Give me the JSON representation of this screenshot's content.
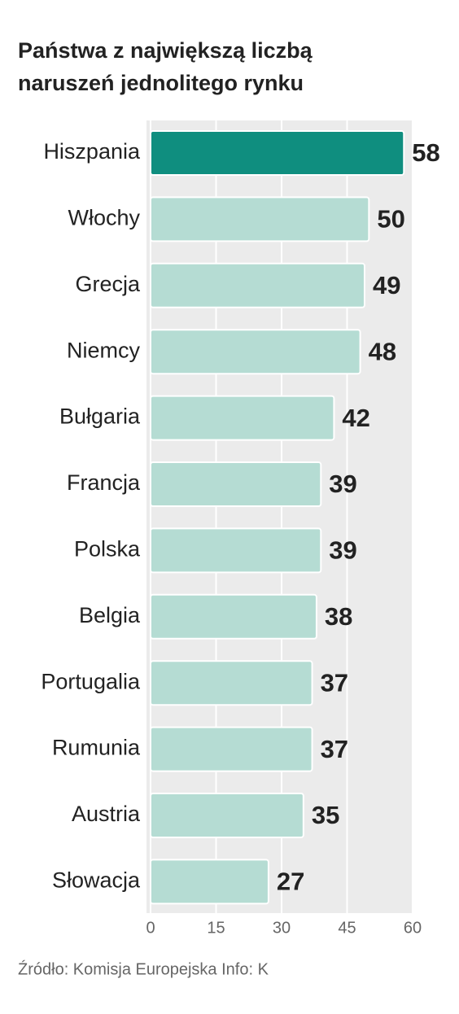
{
  "chart_data": {
    "type": "bar",
    "orientation": "horizontal",
    "title": [
      "Państwa z największą liczbą",
      "naruszeń jednolitego rynku"
    ],
    "categories": [
      "Hiszpania",
      "Włochy",
      "Grecja",
      "Niemcy",
      "Bułgaria",
      "Francja",
      "Polska",
      "Belgia",
      "Portugalia",
      "Rumunia",
      "Austria",
      "Słowacja"
    ],
    "values": [
      58,
      50,
      49,
      48,
      42,
      39,
      39,
      38,
      37,
      37,
      35,
      27
    ],
    "colors": [
      "#0f8e7f",
      "#b5dcd3",
      "#b5dcd3",
      "#b5dcd3",
      "#b5dcd3",
      "#b5dcd3",
      "#b5dcd3",
      "#b5dcd3",
      "#b5dcd3",
      "#b5dcd3",
      "#b5dcd3",
      "#b5dcd3"
    ],
    "xlim": [
      0,
      60
    ],
    "xticks": [
      0,
      15,
      30,
      45,
      60
    ],
    "grid": true,
    "source": "Źródło: Komisja Europejska Info: K"
  }
}
